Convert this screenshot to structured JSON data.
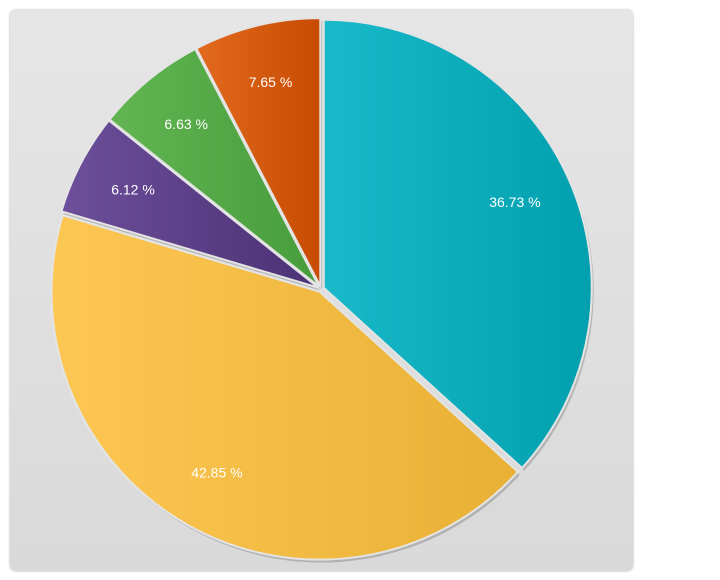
{
  "chart_data": {
    "type": "pie",
    "title": "",
    "slices": [
      {
        "value": 36.73,
        "label": "36.73 %",
        "color": "#0ea4b5",
        "gradient": [
          "#19b9c9",
          "#02a0ae"
        ]
      },
      {
        "value": 42.85,
        "label": "42.85 %",
        "color": "#f2b843",
        "gradient": [
          "#fdc753",
          "#e8b034"
        ]
      },
      {
        "value": 6.12,
        "label": "6.12 %",
        "color": "#5b3f88",
        "gradient": [
          "#6d4f9b",
          "#4b3174"
        ]
      },
      {
        "value": 6.63,
        "label": "6.63 %",
        "color": "#4ea543",
        "gradient": [
          "#62b552",
          "#479c3c"
        ]
      },
      {
        "value": 7.65,
        "label": "7.65 %",
        "color": "#d5560e",
        "gradient": [
          "#e26a1f",
          "#c74b02"
        ]
      }
    ],
    "start_angle": "top, clockwise",
    "exploded": true,
    "legend": "none"
  }
}
